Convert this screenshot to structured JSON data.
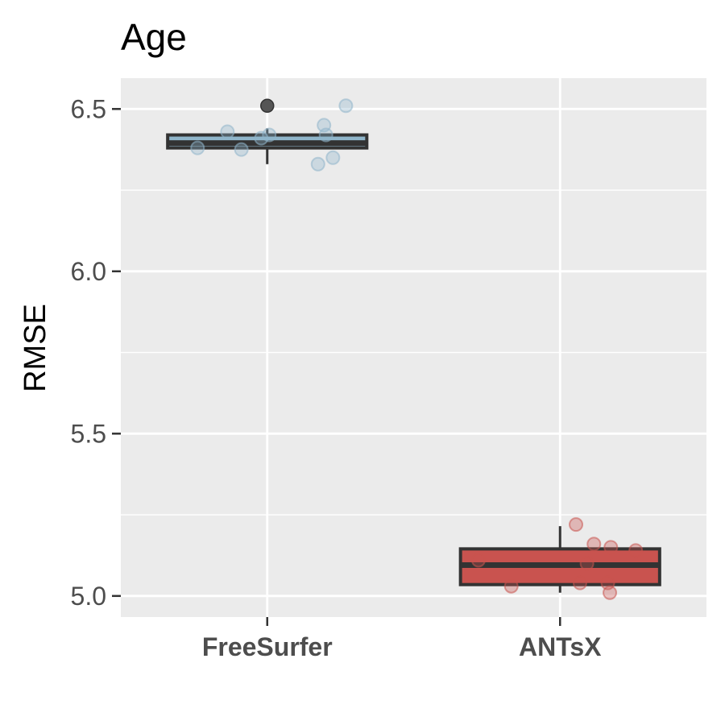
{
  "chart_data": {
    "type": "boxplot",
    "title": "Age",
    "xlabel": "",
    "ylabel": "RMSE",
    "ylim": [
      4.935,
      6.595
    ],
    "yticks": [
      5.0,
      5.5,
      6.0,
      6.5
    ],
    "ytick_labels": [
      "5.0",
      "5.5",
      "6.0",
      "6.5"
    ],
    "grid": true,
    "categories": [
      "FreeSurfer",
      "ANTsX"
    ],
    "colors": {
      "FreeSurfer": "#8fb5ca",
      "ANTsX": "#c9534f",
      "panel": "#ebebeb",
      "gridline": "#ffffff",
      "box_border": "#333333",
      "outlier": "#555555"
    },
    "boxes": [
      {
        "name": "FreeSurfer",
        "q1": 6.38,
        "median": 6.395,
        "q3": 6.42,
        "whisker_low": 6.33,
        "whisker_high": 6.44,
        "outliers": [
          6.51
        ]
      },
      {
        "name": "ANTsX",
        "q1": 5.035,
        "median": 5.095,
        "q3": 5.145,
        "whisker_low": 5.01,
        "whisker_high": 5.215,
        "outliers": []
      }
    ],
    "points": [
      {
        "name": "FreeSurfer",
        "values": [
          6.38,
          6.43,
          6.375,
          6.41,
          6.42,
          6.33,
          6.45,
          6.42,
          6.35,
          6.51
        ]
      },
      {
        "name": "ANTsX",
        "values": [
          5.11,
          5.03,
          5.22,
          5.16,
          5.1,
          5.04,
          5.15,
          5.04,
          5.01,
          5.14
        ]
      }
    ]
  }
}
